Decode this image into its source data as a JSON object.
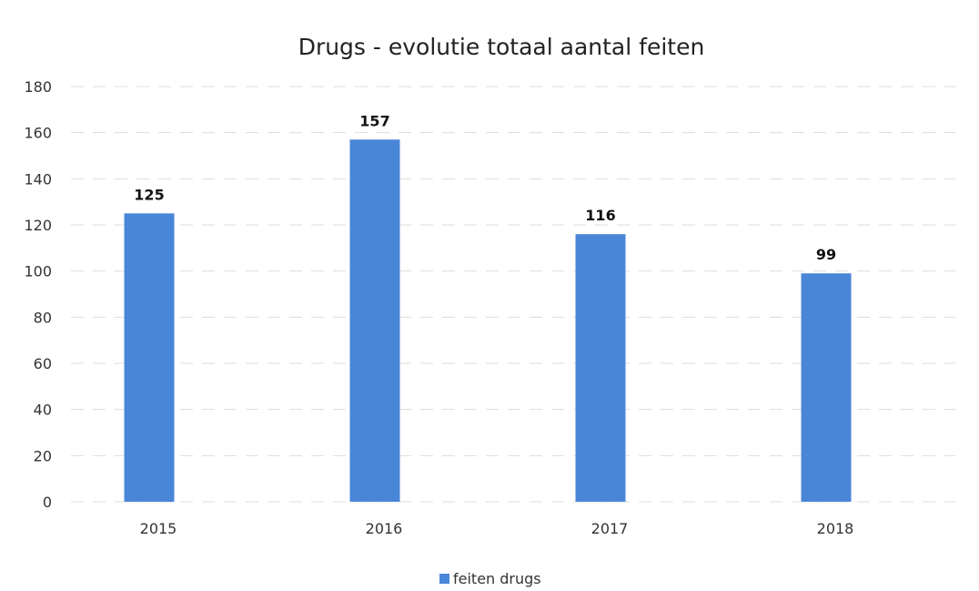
{
  "chart_data": {
    "type": "bar",
    "title": "Drugs - evolutie totaal aantal feiten",
    "categories": [
      "2015",
      "2016",
      "2017",
      "2018"
    ],
    "series": [
      {
        "name": "feiten drugs",
        "values": [
          125,
          157,
          116,
          99
        ],
        "color": "#4a86d8"
      }
    ],
    "ylim": [
      0,
      180
    ],
    "yticks": [
      0,
      20,
      40,
      60,
      80,
      100,
      120,
      140,
      160,
      180
    ],
    "grid": true,
    "legend_position": "bottom",
    "data_labels": true
  }
}
